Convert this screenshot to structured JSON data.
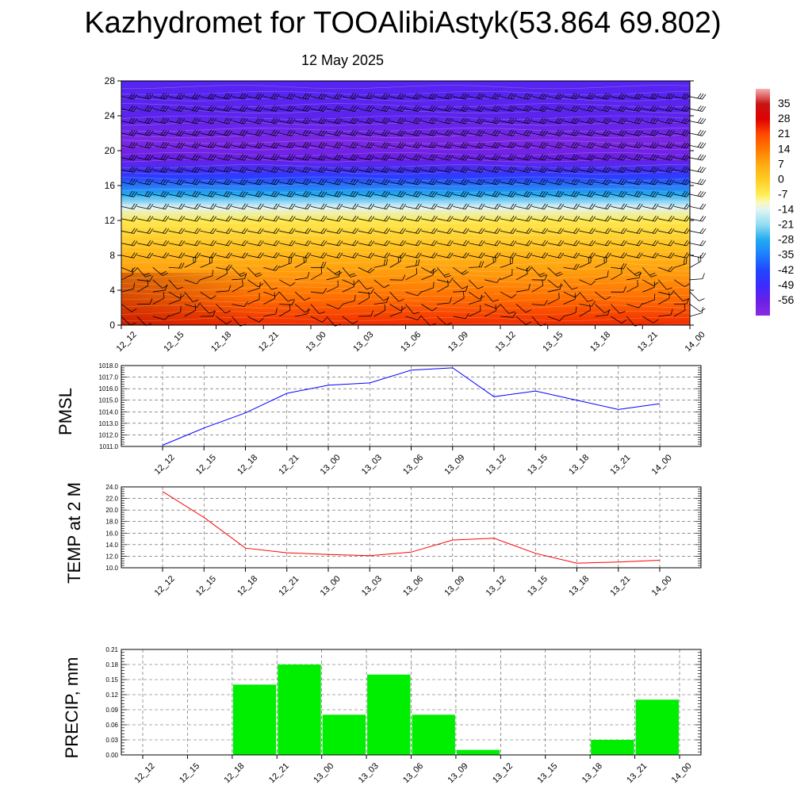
{
  "title": "Kazhydromet for TOOAlibiAstyk(53.864 69.802)",
  "subtitle": "12 May 2025",
  "time_labels": [
    "12_12",
    "12_15",
    "12_18",
    "12_21",
    "13_00",
    "13_03",
    "13_06",
    "13_09",
    "13_12",
    "13_15",
    "13_18",
    "13_21",
    "14_00"
  ],
  "colors": {
    "pmsl_line": "#0000ff",
    "temp_line": "#ff0000",
    "precip_bar": "#00ee00",
    "axes": "#000000"
  },
  "chart_data": [
    {
      "type": "heatmap",
      "title": "",
      "xlabel": "",
      "ylabel": "",
      "x": [
        "12_12",
        "12_15",
        "12_18",
        "12_21",
        "13_00",
        "13_03",
        "13_06",
        "13_09",
        "13_12",
        "13_15",
        "13_18",
        "13_21",
        "14_00"
      ],
      "ylim": [
        0,
        28
      ],
      "yticks": [
        "0",
        "4",
        "8",
        "12",
        "16",
        "20",
        "24",
        "28"
      ],
      "colorbar": {
        "labels": [
          "35",
          "28",
          "21",
          "14",
          "7",
          "0",
          "-7",
          "-14",
          "-21",
          "-28",
          "-35",
          "-42",
          "-49",
          "-56"
        ],
        "range": [
          -63,
          42
        ]
      },
      "temperature_profile": [
        {
          "level": 0,
          "value": 24
        },
        {
          "level": 3,
          "value": 16
        },
        {
          "level": 6,
          "value": 9
        },
        {
          "level": 9,
          "value": 2
        },
        {
          "level": 12,
          "value": -6
        },
        {
          "level": 13.5,
          "value": -14
        },
        {
          "level": 15,
          "value": -28
        },
        {
          "level": 17,
          "value": -45
        },
        {
          "level": 19,
          "value": -56
        },
        {
          "level": 21,
          "value": -60
        },
        {
          "level": 24,
          "value": -54
        },
        {
          "level": 28,
          "value": -53
        }
      ],
      "wind_barbs": true
    },
    {
      "type": "line",
      "title": "",
      "xlabel": "",
      "ylabel": "PMSL",
      "categories": [
        "12_12",
        "12_15",
        "12_18",
        "12_21",
        "13_00",
        "13_03",
        "13_06",
        "13_09",
        "13_12",
        "13_15",
        "13_18",
        "13_21",
        "14_00"
      ],
      "series": [
        {
          "values": [
            1011.1,
            1012.6,
            1013.9,
            1015.6,
            1016.3,
            1016.5,
            1017.6,
            1017.8,
            1015.3,
            1015.8,
            1015.0,
            1014.2,
            1014.7
          ]
        }
      ],
      "ylim": [
        1011.0,
        1018.0
      ],
      "yticks": [
        "1011.0",
        "1012.0",
        "1013.0",
        "1014.0",
        "1015.0",
        "1016.0",
        "1017.0",
        "1018.0"
      ],
      "grid": true
    },
    {
      "type": "line",
      "title": "",
      "xlabel": "",
      "ylabel": "TEMP at 2 M",
      "categories": [
        "12_12",
        "12_15",
        "12_18",
        "12_21",
        "13_00",
        "13_03",
        "13_06",
        "13_09",
        "13_12",
        "13_15",
        "13_18",
        "13_21",
        "14_00"
      ],
      "series": [
        {
          "values": [
            23.2,
            18.7,
            13.4,
            12.6,
            12.3,
            12.1,
            12.7,
            14.8,
            15.1,
            12.5,
            10.8,
            11.0,
            11.3
          ]
        }
      ],
      "ylim": [
        10.0,
        24.0
      ],
      "yticks": [
        "10.0",
        "12.0",
        "14.0",
        "16.0",
        "18.0",
        "20.0",
        "22.0",
        "24.0"
      ],
      "grid": true
    },
    {
      "type": "bar",
      "title": "",
      "xlabel": "",
      "ylabel": "PRECIP, mm",
      "categories": [
        "12_12",
        "12_15",
        "12_18",
        "12_21",
        "13_00",
        "13_03",
        "13_06",
        "13_09",
        "13_12",
        "13_15",
        "13_18",
        "13_21",
        "14_00"
      ],
      "values": [
        0,
        0,
        0,
        0.14,
        0.18,
        0.08,
        0.16,
        0.08,
        0.01,
        0,
        0,
        0.03,
        0.11
      ],
      "ylim": [
        0,
        0.21
      ],
      "yticks": [
        "0.00",
        "0.03",
        "0.06",
        "0.09",
        "0.12",
        "0.15",
        "0.18",
        "0.21"
      ],
      "grid": true
    }
  ]
}
